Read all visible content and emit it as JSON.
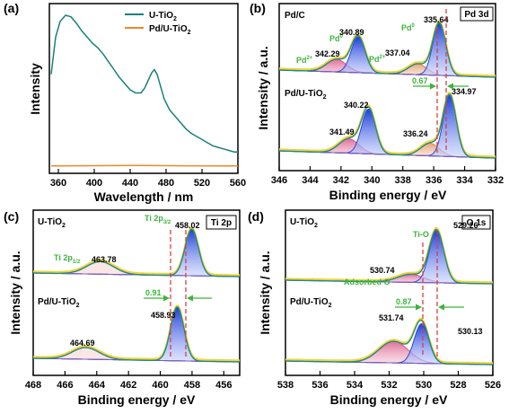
{
  "chart_data": [
    {
      "panel_label": "(a)",
      "type": "line",
      "xlabel": "Wavelength / nm",
      "ylabel": "Intensity",
      "xlim": [
        350,
        560
      ],
      "xticks": [
        360,
        400,
        440,
        480,
        520,
        560
      ],
      "grid": false,
      "legend": "top-right",
      "series": [
        {
          "name": "U-TiO2",
          "color": "#1a7f7a",
          "x": [
            352,
            357,
            362,
            368,
            374,
            380,
            386,
            392,
            398,
            404,
            410,
            416,
            422,
            428,
            434,
            440,
            446,
            452,
            456,
            460,
            464,
            467,
            470,
            474,
            478,
            484,
            490,
            496,
            502,
            508,
            514,
            520,
            526,
            532,
            538,
            544,
            550,
            556,
            560
          ],
          "y": [
            0.62,
            0.86,
            0.96,
            1.0,
            0.99,
            0.95,
            0.9,
            0.86,
            0.82,
            0.79,
            0.75,
            0.7,
            0.65,
            0.6,
            0.56,
            0.52,
            0.5,
            0.5,
            0.53,
            0.58,
            0.63,
            0.65,
            0.62,
            0.54,
            0.46,
            0.39,
            0.35,
            0.31,
            0.27,
            0.24,
            0.22,
            0.2,
            0.18,
            0.16,
            0.15,
            0.14,
            0.13,
            0.12,
            0.12
          ]
        },
        {
          "name": "Pd/U-TiO2",
          "color": "#e8892b",
          "x": [
            352,
            400,
            450,
            500,
            560
          ],
          "y": [
            0.03,
            0.032,
            0.033,
            0.031,
            0.03
          ]
        }
      ]
    },
    {
      "panel_label": "(b)",
      "type": "line",
      "xlabel": "Binding energy / eV",
      "ylabel": "Intensity / a.u.",
      "xlim": [
        346,
        332
      ],
      "xticks": [
        346,
        344,
        342,
        340,
        338,
        336,
        334,
        332
      ],
      "grid": false,
      "box_label": "Pd 3d",
      "samples": [
        "Pd/C",
        "Pd/U-TiO2"
      ],
      "peak_positions": {
        "Pd/C": [
          342.29,
          340.89,
          337.04,
          335.64
        ],
        "Pd/U-TiO2": [
          341.49,
          340.22,
          336.24,
          334.97
        ]
      },
      "peak_labels": [
        "Pd2+",
        "Pd0",
        "Pd2+",
        "Pd0"
      ],
      "shift": "0.67"
    },
    {
      "panel_label": "(c)",
      "type": "line",
      "xlabel": "Binding energy / eV",
      "ylabel": "Intensity / a.u.",
      "xlim": [
        468,
        455
      ],
      "xticks": [
        468,
        466,
        464,
        462,
        460,
        458,
        456
      ],
      "grid": false,
      "box_label": "Ti 2p",
      "samples": [
        "U-TiO2",
        "Pd/U-TiO2"
      ],
      "peak_positions": {
        "U-TiO2": [
          463.78,
          458.02
        ],
        "Pd/U-TiO2": [
          464.69,
          458.93
        ]
      },
      "peak_labels": [
        "Ti 2p1/2",
        "Ti 2p3/2"
      ],
      "shift": "0.91"
    },
    {
      "panel_label": "(d)",
      "type": "line",
      "xlabel": "Binding energy / eV",
      "ylabel": "Intensity / a.u.",
      "xlim": [
        538,
        526
      ],
      "xticks": [
        538,
        536,
        534,
        532,
        530,
        528,
        526
      ],
      "grid": false,
      "box_label": "O 1s",
      "samples": [
        "U-TiO2",
        "Pd/U-TiO2"
      ],
      "peak_positions": {
        "U-TiO2": [
          530.74,
          529.26
        ],
        "Pd/U-TiO2": [
          531.74,
          530.13
        ]
      },
      "peak_labels": [
        "Adsorbed O",
        "Ti-O"
      ],
      "shift": "0.87"
    }
  ],
  "text": {
    "a_label": "(a)",
    "b_label": "(b)",
    "c_label": "(c)",
    "d_label": "(d)",
    "a_xlabel": "Wavelength / nm",
    "a_ylabel": "Intensity",
    "be_label": "Binding energy / eV",
    "int_label": "Intensity / a.u.",
    "leg1": "U-TiO",
    "leg2": "Pd/U-TiO",
    "sub2": "2",
    "pd3d": "Pd 3d",
    "ti2p": "Ti 2p",
    "o1s": "O 1s",
    "pdc": "Pd/C",
    "pdu": "Pd/U-TiO",
    "ut": "U-TiO",
    "pd0": "Pd",
    "pd2": "Pd",
    "sup0": "0",
    "sup2": "2+",
    "b_v1": "342.29",
    "b_v2": "340.89",
    "b_v3": "337.04",
    "b_v4": "335.64",
    "b_v5": "341.49",
    "b_v6": "340.22",
    "b_v7": "336.24",
    "b_v8": "334.97",
    "b_shift": "0.67",
    "c_ti": "Ti 2p",
    "c_sub12": "1/2",
    "c_sub32": "3/2",
    "c_v1": "463.78",
    "c_v2": "458.02",
    "c_v3": "464.69",
    "c_v4": "458.93",
    "c_shift": "0.91",
    "d_tio": "Ti-O",
    "d_ads": "Adsorbed O",
    "d_v1": "530.74",
    "d_v2": "529.26",
    "d_v3": "531.74",
    "d_v4": "530.13",
    "d_shift": "0.87"
  }
}
